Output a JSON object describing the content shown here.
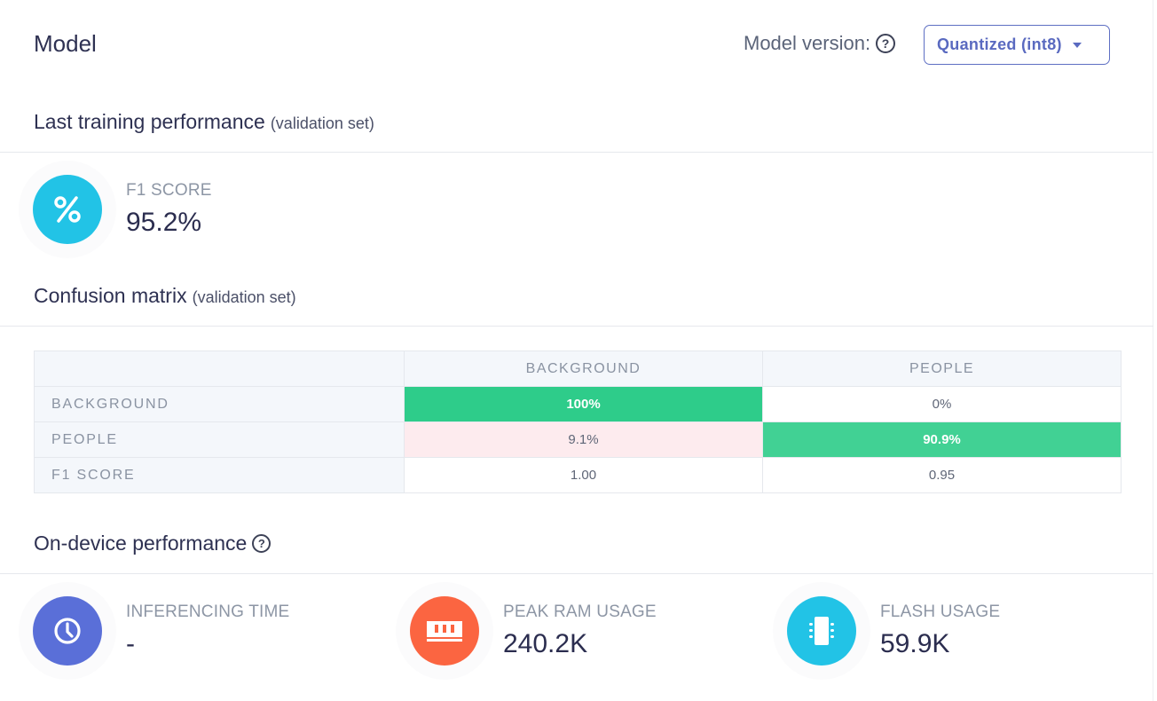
{
  "header": {
    "title": "Model",
    "version_label": "Model version:",
    "version_selected": "Quantized (int8)",
    "help_icon": "question-circle-icon"
  },
  "training": {
    "title": "Last training performance",
    "subtitle": "(validation set)",
    "f1": {
      "label": "F1 SCORE",
      "value": "95.2%",
      "icon": "percent-icon",
      "color": "#22c3e6"
    }
  },
  "confusion": {
    "title": "Confusion matrix",
    "subtitle": "(validation set)",
    "columns": [
      "BACKGROUND",
      "PEOPLE"
    ],
    "rows": [
      {
        "label": "BACKGROUND",
        "cells": [
          "100%",
          "0%"
        ]
      },
      {
        "label": "PEOPLE",
        "cells": [
          "9.1%",
          "90.9%"
        ]
      },
      {
        "label": "F1 SCORE",
        "cells": [
          "1.00",
          "0.95"
        ]
      }
    ],
    "colors": {
      "correct": "#2ecc8a",
      "error": "#fdebee"
    }
  },
  "device": {
    "title": "On-device performance",
    "help_icon": "question-circle-icon",
    "metrics": [
      {
        "label": "INFERENCING TIME",
        "value": "-",
        "icon": "clock-icon",
        "color": "#5a6fd8"
      },
      {
        "label": "PEAK RAM USAGE",
        "value": "240.2K",
        "icon": "memory-icon",
        "color": "#fb6541"
      },
      {
        "label": "FLASH USAGE",
        "value": "59.9K",
        "icon": "chip-icon",
        "color": "#22c3e6"
      }
    ]
  }
}
